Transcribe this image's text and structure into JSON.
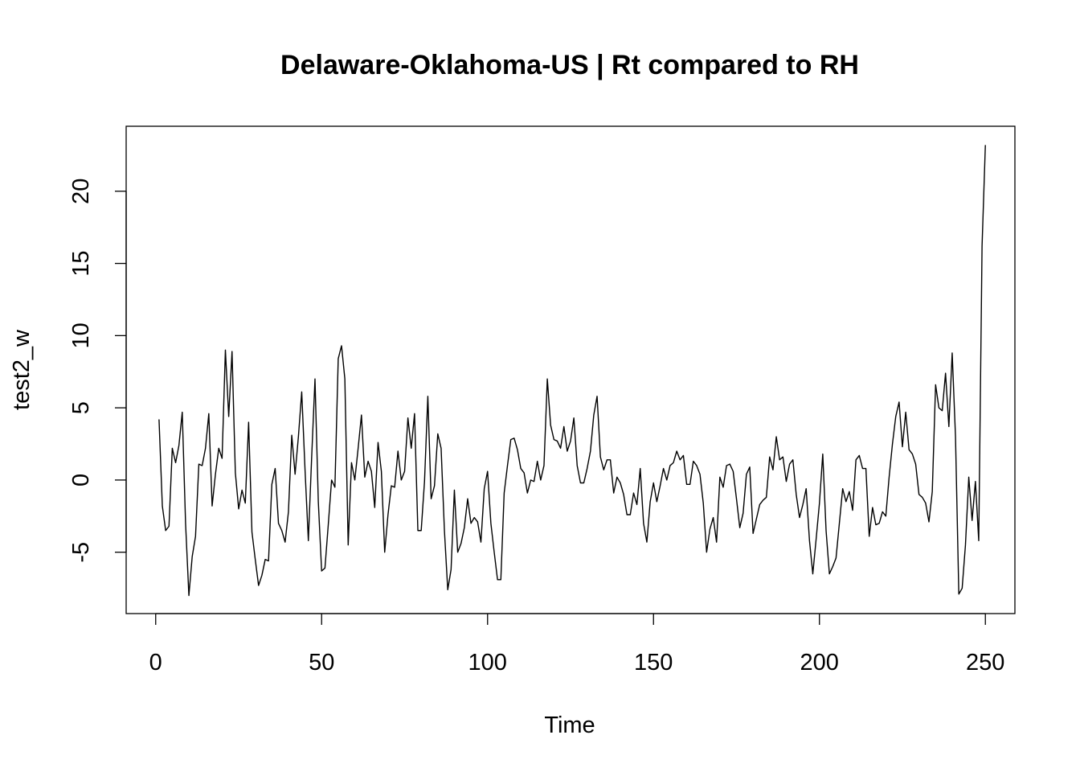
{
  "chart_data": {
    "type": "line",
    "title": "Delaware-Oklahoma-US | Rt compared to RH",
    "xlabel": "Time",
    "ylabel": "test2_w",
    "xlim": [
      -8.9,
      258.9
    ],
    "ylim": [
      -9.25,
      24.5
    ],
    "xticks": [
      0,
      50,
      100,
      150,
      200,
      250
    ],
    "yticks": [
      -5,
      0,
      5,
      10,
      15,
      20
    ],
    "grid": false,
    "legend": "none",
    "line_color": "#000000",
    "x_start": 1,
    "x_step": 1,
    "values": [
      4.2,
      -1.8,
      -3.5,
      -3.2,
      2.2,
      1.2,
      2.4,
      4.7,
      -3.0,
      -8.0,
      -5.3,
      -3.9,
      1.1,
      1.0,
      2.2,
      4.6,
      -1.8,
      0.4,
      2.2,
      1.5,
      9.0,
      4.4,
      8.9,
      0.5,
      -2.0,
      -0.7,
      -1.6,
      4.0,
      -3.6,
      -5.5,
      -7.3,
      -6.6,
      -5.5,
      -5.6,
      -0.3,
      0.8,
      -3.0,
      -3.5,
      -4.3,
      -2.2,
      3.1,
      0.4,
      3.0,
      6.1,
      0.7,
      -4.2,
      1.6,
      7.0,
      -1.5,
      -6.3,
      -6.1,
      -3.1,
      0.0,
      -0.5,
      8.4,
      9.3,
      7.0,
      -4.5,
      1.2,
      0.0,
      2.2,
      4.5,
      0.2,
      1.3,
      0.6,
      -1.9,
      2.6,
      0.6,
      -5.0,
      -2.4,
      -0.4,
      -0.5,
      2.0,
      0.0,
      0.6,
      4.3,
      2.2,
      4.6,
      -3.5,
      -3.5,
      -0.1,
      5.8,
      -1.3,
      -0.4,
      3.2,
      2.2,
      -3.5,
      -7.6,
      -6.2,
      -0.7,
      -5.0,
      -4.4,
      -3.3,
      -1.3,
      -3.0,
      -2.6,
      -2.9,
      -4.3,
      -0.6,
      0.6,
      -3.0,
      -5.0,
      -6.9,
      -6.9,
      -0.9,
      1.0,
      2.8,
      2.9,
      2.1,
      0.8,
      0.5,
      -0.9,
      0.0,
      -0.1,
      1.3,
      0.0,
      1.0,
      7.0,
      3.8,
      2.8,
      2.7,
      2.2,
      3.7,
      2.0,
      2.7,
      4.3,
      1.0,
      -0.2,
      -0.2,
      0.8,
      2.0,
      4.5,
      5.8,
      1.6,
      0.7,
      1.4,
      1.4,
      -0.9,
      0.2,
      -0.2,
      -1.0,
      -2.4,
      -2.4,
      -0.9,
      -1.7,
      0.8,
      -3.0,
      -4.3,
      -1.5,
      -0.2,
      -1.5,
      -0.4,
      0.8,
      0.0,
      1.0,
      1.2,
      2.0,
      1.4,
      1.7,
      -0.3,
      -0.3,
      1.3,
      1.0,
      0.4,
      -1.6,
      -5.0,
      -3.4,
      -2.6,
      -4.3,
      0.2,
      -0.5,
      1.0,
      1.1,
      0.6,
      -1.3,
      -3.3,
      -2.3,
      0.4,
      0.9,
      -3.7,
      -2.7,
      -1.7,
      -1.4,
      -1.2,
      1.6,
      0.7,
      3.0,
      1.4,
      1.6,
      -0.1,
      1.1,
      1.4,
      -1.0,
      -2.6,
      -1.7,
      -0.6,
      -4.2,
      -6.5,
      -4.1,
      -1.6,
      1.8,
      -3.5,
      -6.5,
      -6.0,
      -5.4,
      -3.0,
      -0.6,
      -1.5,
      -0.8,
      -2.1,
      1.4,
      1.7,
      0.8,
      0.8,
      -3.9,
      -1.9,
      -3.1,
      -3.0,
      -2.2,
      -2.5,
      0.2,
      2.5,
      4.4,
      5.4,
      2.3,
      4.7,
      2.1,
      1.8,
      1.1,
      -1.0,
      -1.2,
      -1.6,
      -2.9,
      -0.8,
      6.6,
      5.0,
      4.8,
      7.4,
      3.7,
      8.8,
      3.0,
      -7.9,
      -7.5,
      -4.5,
      0.2,
      -2.8,
      -0.1,
      -4.2,
      16.2,
      23.2
    ]
  }
}
